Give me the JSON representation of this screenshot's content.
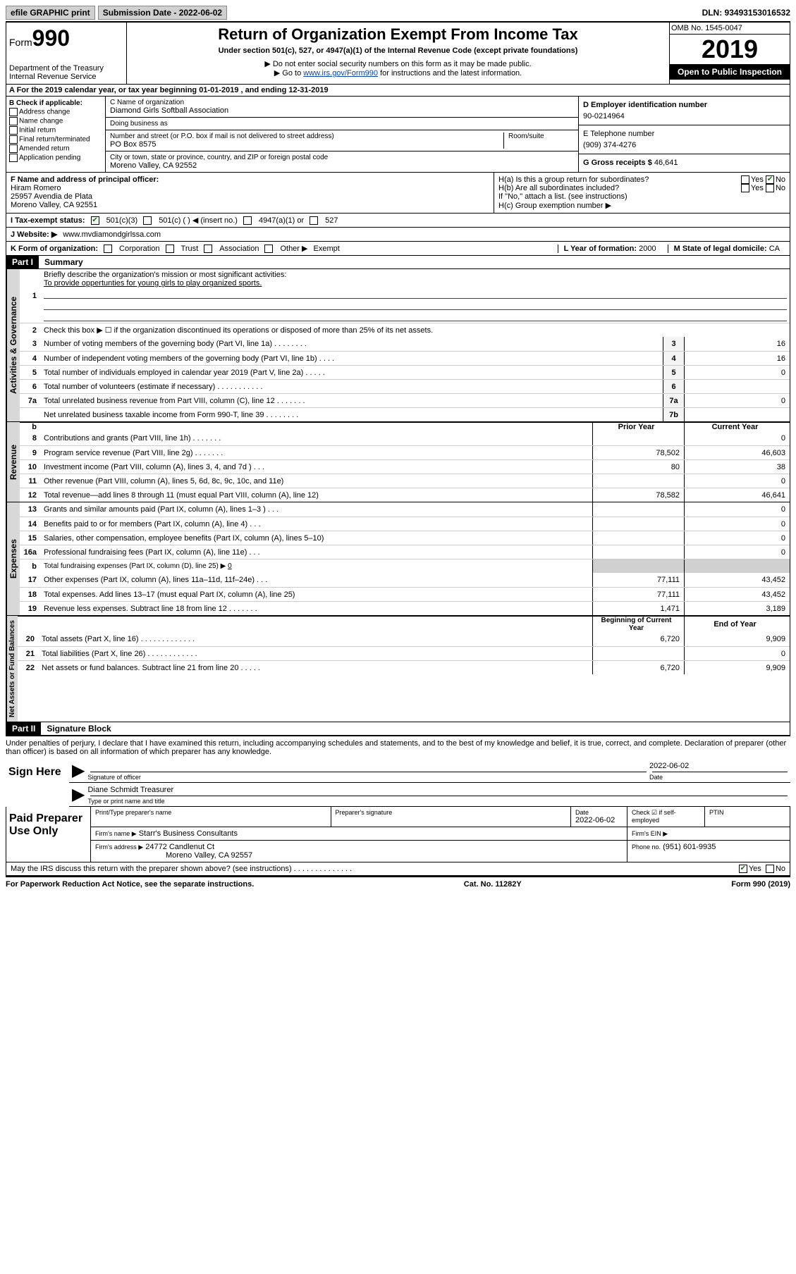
{
  "topbar": {
    "efile": "efile GRAPHIC print",
    "sub_label": "Submission Date - 2022-06-02",
    "dln": "DLN: 93493153016532"
  },
  "header": {
    "form_label": "Form",
    "form_num": "990",
    "dept": "Department of the Treasury",
    "irs": "Internal Revenue Service",
    "title": "Return of Organization Exempt From Income Tax",
    "subtitle": "Under section 501(c), 527, or 4947(a)(1) of the Internal Revenue Code (except private foundations)",
    "note1": "▶ Do not enter social security numbers on this form as it may be made public.",
    "note2_pre": "▶ Go to ",
    "note2_link": "www.irs.gov/Form990",
    "note2_post": " for instructions and the latest information.",
    "omb": "OMB No. 1545-0047",
    "year": "2019",
    "open": "Open to Public Inspection"
  },
  "row_a": "A  For the 2019 calendar year, or tax year beginning 01-01-2019    , and ending 12-31-2019",
  "col_b": {
    "label": "B Check if applicable:",
    "opts": [
      "Address change",
      "Name change",
      "Initial return",
      "Final return/terminated",
      "Amended return",
      "Application pending"
    ]
  },
  "col_c": {
    "name_lbl": "C Name of organization",
    "name": "Diamond Girls Softball Association",
    "dba_lbl": "Doing business as",
    "dba": "",
    "street_lbl": "Number and street (or P.O. box if mail is not delivered to street address)",
    "room_lbl": "Room/suite",
    "street": "PO Box 8575",
    "city_lbl": "City or town, state or province, country, and ZIP or foreign postal code",
    "city": "Moreno Valley, CA  92552"
  },
  "col_d": {
    "ein_lbl": "D Employer identification number",
    "ein": "90-0214964",
    "tel_lbl": "E Telephone number",
    "tel": "(909) 374-4276",
    "gross_lbl": "G Gross receipts $",
    "gross": "46,641"
  },
  "col_f": {
    "lbl": "F  Name and address of principal officer:",
    "name": "Hiram Romero",
    "addr1": "25957 Avendia de Plata",
    "addr2": "Moreno Valley, CA  92551"
  },
  "col_h": {
    "ha": "H(a)  Is this a group return for subordinates?",
    "hb": "H(b)  Are all subordinates included?",
    "hb_note": "If \"No,\" attach a list. (see instructions)",
    "hc": "H(c)  Group exemption number ▶",
    "yes": "Yes",
    "no": "No"
  },
  "row_i": {
    "lbl": "I   Tax-exempt status:",
    "o1": "501(c)(3)",
    "o2": "501(c) (   ) ◀ (insert no.)",
    "o3": "4947(a)(1) or",
    "o4": "527"
  },
  "row_j": {
    "lbl": "J   Website: ▶",
    "val": "www.mvdiamondgirlssa.com"
  },
  "row_k": {
    "lbl": "K Form of organization:",
    "o1": "Corporation",
    "o2": "Trust",
    "o3": "Association",
    "o4": "Other ▶",
    "oval": "Exempt",
    "l_lbl": "L Year of formation:",
    "l_val": "2000",
    "m_lbl": "M State of legal domicile:",
    "m_val": "CA"
  },
  "part1": {
    "hdr": "Part I",
    "title": "Summary"
  },
  "governance": {
    "tab": "Activities & Governance",
    "l1_lbl": "Briefly describe the organization's mission or most significant activities:",
    "l1_val": "To provide oppertunties for young girls to play organized sports.",
    "l2": "Check this box ▶ ☐  if the organization discontinued its operations or disposed of more than 25% of its net assets.",
    "rows": [
      {
        "n": "3",
        "t": "Number of voting members of the governing body (Part VI, line 1a)   .    .    .    .    .    .    .    .",
        "b": "3",
        "v": "16"
      },
      {
        "n": "4",
        "t": "Number of independent voting members of the governing body (Part VI, line 1b)    .    .    .    .",
        "b": "4",
        "v": "16"
      },
      {
        "n": "5",
        "t": "Total number of individuals employed in calendar year 2019 (Part V, line 2a)   .    .    .    .    .",
        "b": "5",
        "v": "0"
      },
      {
        "n": "6",
        "t": "Total number of volunteers (estimate if necessary)   .    .    .    .    .    .    .    .    .    .    .",
        "b": "6",
        "v": ""
      },
      {
        "n": "7a",
        "t": "Total unrelated business revenue from Part VIII, column (C), line 12   .    .    .    .    .    .    .",
        "b": "7a",
        "v": "0"
      },
      {
        "n": "",
        "t": "Net unrelated business taxable income from Form 990-T, line 39   .    .    .    .    .    .    .    .",
        "b": "7b",
        "v": ""
      }
    ]
  },
  "revenue": {
    "tab": "Revenue",
    "hdr_b": "b",
    "hdr_prior": "Prior Year",
    "hdr_curr": "Current Year",
    "rows": [
      {
        "n": "8",
        "t": "Contributions and grants (Part VIII, line 1h)   .    .    .    .    .    .    .",
        "p": "",
        "c": "0"
      },
      {
        "n": "9",
        "t": "Program service revenue (Part VIII, line 2g)   .    .    .    .    .    .    .",
        "p": "78,502",
        "c": "46,603"
      },
      {
        "n": "10",
        "t": "Investment income (Part VIII, column (A), lines 3, 4, and 7d )   .    .    .",
        "p": "80",
        "c": "38"
      },
      {
        "n": "11",
        "t": "Other revenue (Part VIII, column (A), lines 5, 6d, 8c, 9c, 10c, and 11e)",
        "p": "",
        "c": "0"
      },
      {
        "n": "12",
        "t": "Total revenue—add lines 8 through 11 (must equal Part VIII, column (A), line 12)",
        "p": "78,582",
        "c": "46,641"
      }
    ]
  },
  "expenses": {
    "tab": "Expenses",
    "rows": [
      {
        "n": "13",
        "t": "Grants and similar amounts paid (Part IX, column (A), lines 1–3 )   .    .    .",
        "p": "",
        "c": "0"
      },
      {
        "n": "14",
        "t": "Benefits paid to or for members (Part IX, column (A), line 4)   .    .    .",
        "p": "",
        "c": "0"
      },
      {
        "n": "15",
        "t": "Salaries, other compensation, employee benefits (Part IX, column (A), lines 5–10)",
        "p": "",
        "c": "0"
      },
      {
        "n": "16a",
        "t": "Professional fundraising fees (Part IX, column (A), line 11e)   .    .    .",
        "p": "",
        "c": "0"
      }
    ],
    "l16b_n": "b",
    "l16b": "Total fundraising expenses (Part IX, column (D), line 25) ▶",
    "l16b_v": "0",
    "rows2": [
      {
        "n": "17",
        "t": "Other expenses (Part IX, column (A), lines 11a–11d, 11f–24e)   .    .    .",
        "p": "77,111",
        "c": "43,452"
      },
      {
        "n": "18",
        "t": "Total expenses. Add lines 13–17 (must equal Part IX, column (A), line 25)",
        "p": "77,111",
        "c": "43,452"
      },
      {
        "n": "19",
        "t": "Revenue less expenses. Subtract line 18 from line 12 .    .    .    .    .    .    .",
        "p": "1,471",
        "c": "3,189"
      }
    ]
  },
  "netassets": {
    "tab": "Net Assets or Fund Balances",
    "hdr_beg": "Beginning of Current Year",
    "hdr_end": "End of Year",
    "rows": [
      {
        "n": "20",
        "t": "Total assets (Part X, line 16)   .    .    .    .    .    .    .    .    .    .    .    .    .",
        "p": "6,720",
        "c": "9,909"
      },
      {
        "n": "21",
        "t": "Total liabilities (Part X, line 26)   .    .    .    .    .    .    .    .    .    .    .    .",
        "p": "",
        "c": "0"
      },
      {
        "n": "22",
        "t": "Net assets or fund balances. Subtract line 21 from line 20 .    .    .    .    .",
        "p": "6,720",
        "c": "9,909"
      }
    ]
  },
  "part2": {
    "hdr": "Part II",
    "title": "Signature Block"
  },
  "penalties": "Under penalties of perjury, I declare that I have examined this return, including accompanying schedules and statements, and to the best of my knowledge and belief, it is true, correct, and complete. Declaration of preparer (other than officer) is based on all information of which preparer has any knowledge.",
  "sign": {
    "left": "Sign Here",
    "sig_lbl": "Signature of officer",
    "date_lbl": "Date",
    "date": "2022-06-02",
    "name": "Diane Schmidt  Treasurer",
    "name_lbl": "Type or print name and title"
  },
  "prep": {
    "left": "Paid Preparer Use Only",
    "h1": "Print/Type preparer's name",
    "h2": "Preparer's signature",
    "h3": "Date",
    "h3v": "2022-06-02",
    "h4": "Check ☑ if self-employed",
    "h5": "PTIN",
    "firm_lbl": "Firm's name    ▶",
    "firm": "Starr's Business Consultants",
    "ein_lbl": "Firm's EIN ▶",
    "addr_lbl": "Firm's address ▶",
    "addr1": "24772 Candlenut Ct",
    "addr2": "Moreno Valley, CA  92557",
    "phone_lbl": "Phone no.",
    "phone": "(951) 601-9935"
  },
  "discuss": {
    "txt": "May the IRS discuss this return with the preparer shown above? (see instructions)   .    .    .    .    .    .    .    .    .    .    .    .    .    .",
    "yes": "Yes",
    "no": "No"
  },
  "footer": {
    "left": "For Paperwork Reduction Act Notice, see the separate instructions.",
    "mid": "Cat. No. 11282Y",
    "right": "Form 990 (2019)"
  }
}
